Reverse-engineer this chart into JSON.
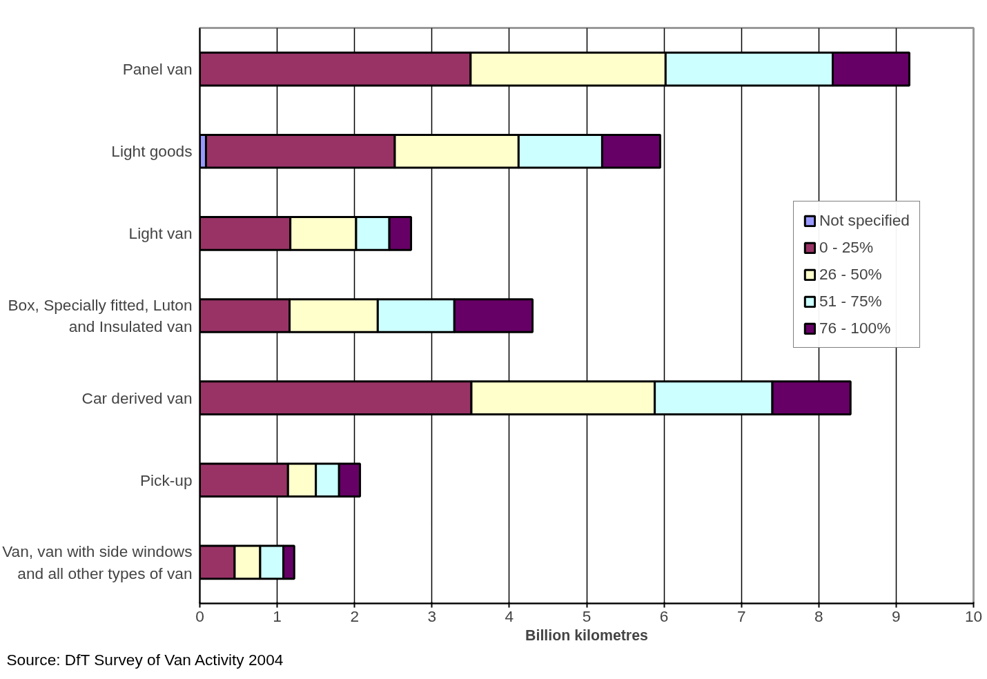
{
  "chart_data": {
    "type": "bar",
    "orientation": "horizontal",
    "stacked": true,
    "categories": [
      "Panel van",
      "Light goods",
      "Light van",
      "Box, Specially fitted, Luton\nand Insulated van",
      "Car derived van",
      "Pick-up",
      "Van, van with side windows\nand all other types of van"
    ],
    "series": [
      {
        "name": "Not specified",
        "color": "#9999ff",
        "values": [
          null,
          0.08,
          null,
          null,
          null,
          null,
          null
        ]
      },
      {
        "name": "0 - 25%",
        "color": "#993366",
        "values": [
          3.5,
          2.44,
          1.17,
          1.16,
          3.51,
          1.14,
          0.45
        ]
      },
      {
        "name": "26 - 50%",
        "color": "#ffffcc",
        "values": [
          2.52,
          1.6,
          0.85,
          1.14,
          2.37,
          0.36,
          0.33
        ]
      },
      {
        "name": "51 - 75%",
        "color": "#ccffff",
        "values": [
          2.16,
          1.08,
          0.43,
          0.99,
          1.52,
          0.3,
          0.3
        ]
      },
      {
        "name": "76 - 100%",
        "color": "#660066",
        "values": [
          0.99,
          0.75,
          0.28,
          1.01,
          1.01,
          0.27,
          0.14
        ]
      }
    ],
    "xlim": [
      0,
      10
    ],
    "xticks": [
      0,
      1,
      2,
      3,
      4,
      5,
      6,
      7,
      8,
      9,
      10
    ],
    "xlabel": "Billion kilometres",
    "grid": "x",
    "legend": "right",
    "annotations": [
      "Source: DfT Survey of Van Activity 2004"
    ]
  }
}
